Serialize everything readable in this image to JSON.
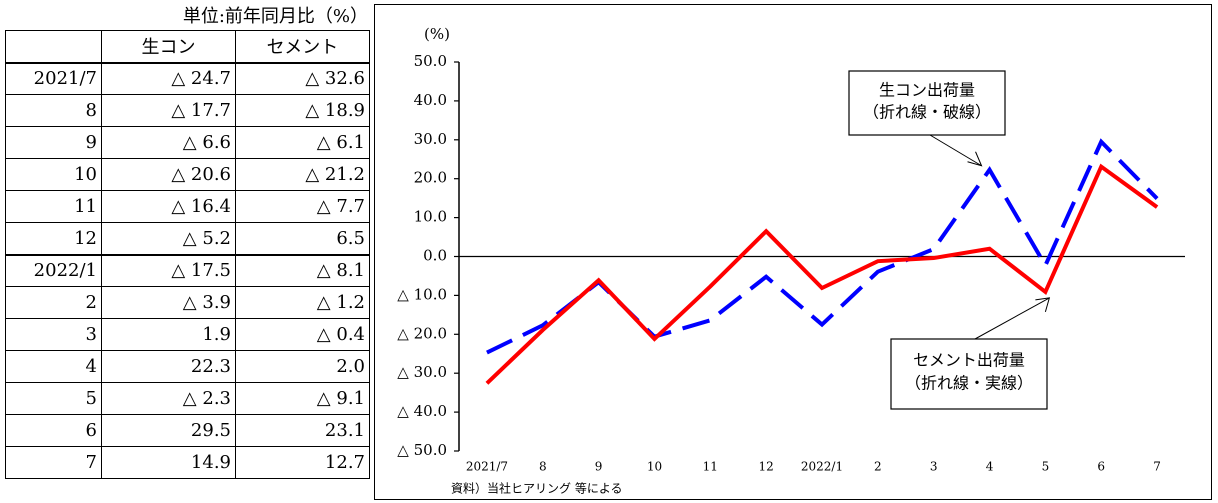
{
  "table": {
    "unit_label": "単位:前年同月比（%）",
    "headers": [
      "",
      "生コン",
      "セメント"
    ],
    "rows": [
      [
        "2021/7",
        "△ 24.7",
        "△ 32.6"
      ],
      [
        "8",
        "△ 17.7",
        "△ 18.9"
      ],
      [
        "9",
        "△ 6.6",
        "△ 6.1"
      ],
      [
        "10",
        "△ 20.6",
        "△ 21.2"
      ],
      [
        "11",
        "△ 16.4",
        "△ 7.7"
      ],
      [
        "12",
        "△ 5.2",
        "6.5"
      ],
      [
        "2022/1",
        "△ 17.5",
        "△ 8.1"
      ],
      [
        "2",
        "△ 3.9",
        "△ 1.2"
      ],
      [
        "3",
        "1.9",
        "△ 0.4"
      ],
      [
        "4",
        "22.3",
        "2.0"
      ],
      [
        "5",
        "△ 2.3",
        "△ 9.1"
      ],
      [
        "6",
        "29.5",
        "23.1"
      ],
      [
        "7",
        "14.9",
        "12.7"
      ]
    ]
  },
  "chart_data": {
    "type": "line",
    "y_unit": "(%)",
    "categories": [
      "2021/7",
      "8",
      "9",
      "10",
      "11",
      "12",
      "2022/1",
      "2",
      "3",
      "4",
      "5",
      "6",
      "7"
    ],
    "y_ticks": [
      "50.0",
      "40.0",
      "30.0",
      "20.0",
      "10.0",
      "0.0",
      "△ 10.0",
      "△ 20.0",
      "△ 30.0",
      "△ 40.0",
      "△ 50.0"
    ],
    "ylim": [
      -50,
      50
    ],
    "series": [
      {
        "key": "namacon",
        "values": [
          -24.7,
          -17.7,
          -6.6,
          -20.6,
          -16.4,
          -5.2,
          -17.5,
          -3.9,
          1.9,
          22.3,
          -2.3,
          29.5,
          14.9
        ],
        "color": "#0000ff",
        "dash": true
      },
      {
        "key": "cement",
        "values": [
          -32.6,
          -18.9,
          -6.1,
          -21.2,
          -7.7,
          6.5,
          -8.1,
          -1.2,
          -0.4,
          2.0,
          -9.1,
          23.1,
          12.7
        ],
        "color": "#ff0000",
        "dash": false
      }
    ],
    "annotations": [
      {
        "lines": [
          "生コン出荷量",
          "（折れ線・破線）"
        ],
        "points_to": {
          "series": "namacon",
          "category_index": 9
        }
      },
      {
        "lines": [
          "セメント出荷量",
          "（折れ線・実線）"
        ],
        "points_to": {
          "series": "cement",
          "category_index": 10
        }
      }
    ],
    "source": "資料）当社ヒアリング 等による"
  }
}
